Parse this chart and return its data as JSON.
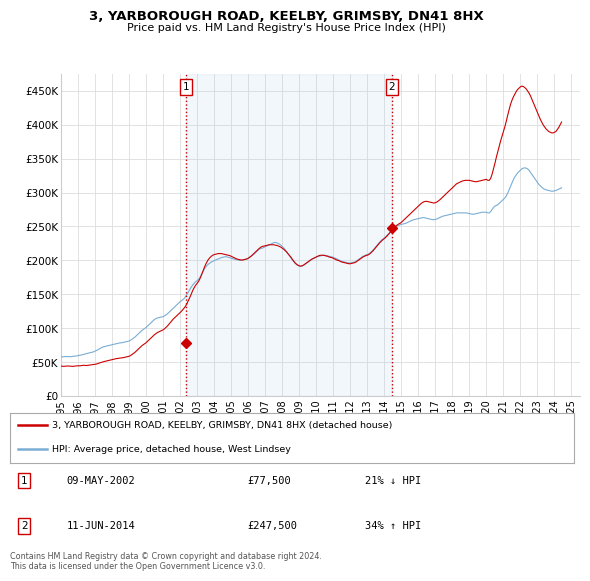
{
  "title": "3, YARBOROUGH ROAD, KEELBY, GRIMSBY, DN41 8HX",
  "subtitle": "Price paid vs. HM Land Registry's House Price Index (HPI)",
  "ylabel_ticks": [
    "£0",
    "£50K",
    "£100K",
    "£150K",
    "£200K",
    "£250K",
    "£300K",
    "£350K",
    "£400K",
    "£450K"
  ],
  "ytick_values": [
    0,
    50000,
    100000,
    150000,
    200000,
    250000,
    300000,
    350000,
    400000,
    450000
  ],
  "ylim": [
    0,
    475000
  ],
  "xlim_start": 1995.0,
  "xlim_end": 2025.5,
  "purchase1": {
    "date_num": 2002.36,
    "price": 77500,
    "label": "1",
    "text": "09-MAY-2002",
    "price_str": "£77,500",
    "pct": "21% ↓ HPI"
  },
  "purchase2": {
    "date_num": 2014.44,
    "price": 247500,
    "label": "2",
    "text": "11-JUN-2014",
    "price_str": "£247,500",
    "pct": "34% ↑ HPI"
  },
  "legend_line1": "3, YARBOROUGH ROAD, KEELBY, GRIMSBY, DN41 8HX (detached house)",
  "legend_line2": "HPI: Average price, detached house, West Lindsey",
  "footer": "Contains HM Land Registry data © Crown copyright and database right 2024.\nThis data is licensed under the Open Government Licence v3.0.",
  "line_color_red": "#cc0000",
  "line_color_blue": "#7aadd4",
  "fill_color": "#ddeeff",
  "vline_color": "#cc0000",
  "box_color": "#cc0000",
  "background_color": "#ffffff",
  "grid_color": "#dddddd",
  "hpi_monthly": {
    "years": [
      1995.0,
      1995.083,
      1995.167,
      1995.25,
      1995.333,
      1995.417,
      1995.5,
      1995.583,
      1995.667,
      1995.75,
      1995.833,
      1995.917,
      1996.0,
      1996.083,
      1996.167,
      1996.25,
      1996.333,
      1996.417,
      1996.5,
      1996.583,
      1996.667,
      1996.75,
      1996.833,
      1996.917,
      1997.0,
      1997.083,
      1997.167,
      1997.25,
      1997.333,
      1997.417,
      1997.5,
      1997.583,
      1997.667,
      1997.75,
      1997.833,
      1997.917,
      1998.0,
      1998.083,
      1998.167,
      1998.25,
      1998.333,
      1998.417,
      1998.5,
      1998.583,
      1998.667,
      1998.75,
      1998.833,
      1998.917,
      1999.0,
      1999.083,
      1999.167,
      1999.25,
      1999.333,
      1999.417,
      1999.5,
      1999.583,
      1999.667,
      1999.75,
      1999.833,
      1999.917,
      2000.0,
      2000.083,
      2000.167,
      2000.25,
      2000.333,
      2000.417,
      2000.5,
      2000.583,
      2000.667,
      2000.75,
      2000.833,
      2000.917,
      2001.0,
      2001.083,
      2001.167,
      2001.25,
      2001.333,
      2001.417,
      2001.5,
      2001.583,
      2001.667,
      2001.75,
      2001.833,
      2001.917,
      2002.0,
      2002.083,
      2002.167,
      2002.25,
      2002.333,
      2002.417,
      2002.5,
      2002.583,
      2002.667,
      2002.75,
      2002.833,
      2002.917,
      2003.0,
      2003.083,
      2003.167,
      2003.25,
      2003.333,
      2003.417,
      2003.5,
      2003.583,
      2003.667,
      2003.75,
      2003.833,
      2003.917,
      2004.0,
      2004.083,
      2004.167,
      2004.25,
      2004.333,
      2004.417,
      2004.5,
      2004.583,
      2004.667,
      2004.75,
      2004.833,
      2004.917,
      2005.0,
      2005.083,
      2005.167,
      2005.25,
      2005.333,
      2005.417,
      2005.5,
      2005.583,
      2005.667,
      2005.75,
      2005.833,
      2005.917,
      2006.0,
      2006.083,
      2006.167,
      2006.25,
      2006.333,
      2006.417,
      2006.5,
      2006.583,
      2006.667,
      2006.75,
      2006.833,
      2006.917,
      2007.0,
      2007.083,
      2007.167,
      2007.25,
      2007.333,
      2007.417,
      2007.5,
      2007.583,
      2007.667,
      2007.75,
      2007.833,
      2007.917,
      2008.0,
      2008.083,
      2008.167,
      2008.25,
      2008.333,
      2008.417,
      2008.5,
      2008.583,
      2008.667,
      2008.75,
      2008.833,
      2008.917,
      2009.0,
      2009.083,
      2009.167,
      2009.25,
      2009.333,
      2009.417,
      2009.5,
      2009.583,
      2009.667,
      2009.75,
      2009.833,
      2009.917,
      2010.0,
      2010.083,
      2010.167,
      2010.25,
      2010.333,
      2010.417,
      2010.5,
      2010.583,
      2010.667,
      2010.75,
      2010.833,
      2010.917,
      2011.0,
      2011.083,
      2011.167,
      2011.25,
      2011.333,
      2011.417,
      2011.5,
      2011.583,
      2011.667,
      2011.75,
      2011.833,
      2011.917,
      2012.0,
      2012.083,
      2012.167,
      2012.25,
      2012.333,
      2012.417,
      2012.5,
      2012.583,
      2012.667,
      2012.75,
      2012.833,
      2012.917,
      2013.0,
      2013.083,
      2013.167,
      2013.25,
      2013.333,
      2013.417,
      2013.5,
      2013.583,
      2013.667,
      2013.75,
      2013.833,
      2013.917,
      2014.0,
      2014.083,
      2014.167,
      2014.25,
      2014.333,
      2014.417,
      2014.5,
      2014.583,
      2014.667,
      2014.75,
      2014.833,
      2014.917,
      2015.0,
      2015.083,
      2015.167,
      2015.25,
      2015.333,
      2015.417,
      2015.5,
      2015.583,
      2015.667,
      2015.75,
      2015.833,
      2015.917,
      2016.0,
      2016.083,
      2016.167,
      2016.25,
      2016.333,
      2016.417,
      2016.5,
      2016.583,
      2016.667,
      2016.75,
      2016.833,
      2016.917,
      2017.0,
      2017.083,
      2017.167,
      2017.25,
      2017.333,
      2017.417,
      2017.5,
      2017.583,
      2017.667,
      2017.75,
      2017.833,
      2017.917,
      2018.0,
      2018.083,
      2018.167,
      2018.25,
      2018.333,
      2018.417,
      2018.5,
      2018.583,
      2018.667,
      2018.75,
      2018.833,
      2018.917,
      2019.0,
      2019.083,
      2019.167,
      2019.25,
      2019.333,
      2019.417,
      2019.5,
      2019.583,
      2019.667,
      2019.75,
      2019.833,
      2019.917,
      2020.0,
      2020.083,
      2020.167,
      2020.25,
      2020.333,
      2020.417,
      2020.5,
      2020.583,
      2020.667,
      2020.75,
      2020.833,
      2020.917,
      2021.0,
      2021.083,
      2021.167,
      2021.25,
      2021.333,
      2021.417,
      2021.5,
      2021.583,
      2021.667,
      2021.75,
      2021.833,
      2021.917,
      2022.0,
      2022.083,
      2022.167,
      2022.25,
      2022.333,
      2022.417,
      2022.5,
      2022.583,
      2022.667,
      2022.75,
      2022.833,
      2022.917,
      2023.0,
      2023.083,
      2023.167,
      2023.25,
      2023.333,
      2023.417,
      2023.5,
      2023.583,
      2023.667,
      2023.75,
      2023.833,
      2023.917,
      2024.0,
      2024.083,
      2024.167,
      2024.25,
      2024.333,
      2024.417
    ],
    "hpi_values": [
      58000,
      57500,
      57800,
      58200,
      57900,
      58100,
      57700,
      58000,
      58300,
      58500,
      58800,
      59000,
      59500,
      59800,
      60200,
      60800,
      61200,
      61700,
      62500,
      63000,
      63500,
      64000,
      64500,
      65000,
      66000,
      67000,
      68000,
      69500,
      70500,
      71500,
      72500,
      73000,
      73500,
      74000,
      74500,
      75000,
      75500,
      76000,
      76500,
      77000,
      77500,
      78000,
      78200,
      78500,
      79000,
      79500,
      80000,
      80500,
      81000,
      82000,
      83500,
      85000,
      86500,
      88500,
      90500,
      92500,
      94500,
      96500,
      98000,
      99500,
      101000,
      103000,
      105000,
      107000,
      109000,
      111000,
      113000,
      114000,
      115000,
      115500,
      116000,
      116500,
      117000,
      118000,
      119500,
      121000,
      123000,
      125000,
      127000,
      129000,
      131000,
      133000,
      135000,
      137000,
      139000,
      140500,
      142000,
      144000,
      147000,
      150500,
      154000,
      157500,
      161000,
      164000,
      166500,
      168500,
      170000,
      172000,
      175000,
      179000,
      183000,
      187000,
      190000,
      192500,
      194500,
      196000,
      197500,
      198500,
      199500,
      200500,
      201500,
      202000,
      203000,
      204000,
      204500,
      205000,
      205500,
      205000,
      204500,
      204000,
      203000,
      202500,
      202000,
      201500,
      201000,
      200500,
      200000,
      200000,
      200500,
      201000,
      201500,
      202000,
      203000,
      204500,
      206000,
      207500,
      209000,
      211000,
      213000,
      215000,
      216500,
      217500,
      218000,
      219000,
      220000,
      221000,
      222000,
      223000,
      224000,
      225000,
      226000,
      226500,
      226000,
      225000,
      224000,
      222500,
      220500,
      218500,
      216000,
      213000,
      210000,
      207000,
      204000,
      201000,
      198500,
      196000,
      194000,
      192500,
      191500,
      191000,
      191500,
      192500,
      194000,
      195500,
      197000,
      198500,
      200000,
      201500,
      202500,
      203500,
      204500,
      205500,
      206000,
      206500,
      207000,
      207500,
      207500,
      207000,
      206500,
      206000,
      205500,
      205000,
      204500,
      203500,
      202500,
      201500,
      200500,
      199500,
      198500,
      198000,
      197500,
      197000,
      196500,
      196000,
      196000,
      196500,
      197000,
      197500,
      198500,
      200000,
      201500,
      203000,
      204500,
      206000,
      207000,
      208000,
      208500,
      209500,
      211000,
      213000,
      215000,
      217500,
      220000,
      222500,
      225000,
      227500,
      229500,
      231500,
      233000,
      235000,
      237000,
      239000,
      241000,
      243000,
      245000,
      247500,
      249000,
      250500,
      251500,
      252500,
      253000,
      253500,
      254000,
      254500,
      255500,
      256500,
      257500,
      258500,
      259500,
      260000,
      260500,
      261000,
      261500,
      262000,
      262500,
      263000,
      263000,
      262500,
      262000,
      261500,
      261000,
      260500,
      260000,
      260000,
      260500,
      261000,
      262000,
      263000,
      264000,
      265000,
      265500,
      266000,
      266500,
      267000,
      267500,
      268000,
      268500,
      269000,
      269500,
      270000,
      270000,
      270000,
      270000,
      270000,
      270000,
      270000,
      270000,
      269500,
      269000,
      268500,
      268000,
      268000,
      268500,
      269000,
      269500,
      270000,
      270500,
      271000,
      271000,
      271000,
      271000,
      270000,
      270000,
      272000,
      275000,
      278000,
      280000,
      281000,
      282000,
      284000,
      286000,
      288000,
      290000,
      292000,
      295000,
      299000,
      304000,
      309000,
      314000,
      319000,
      323000,
      326000,
      329000,
      331000,
      333000,
      335000,
      336000,
      336500,
      336000,
      335000,
      333000,
      330000,
      327000,
      324000,
      321000,
      318000,
      315000,
      312000,
      310000,
      308000,
      306000,
      305000,
      304000,
      303500,
      303000,
      302500,
      302000,
      302000,
      302500,
      303000,
      304000,
      305000,
      306000,
      307000
    ],
    "price_values": [
      44000,
      43800,
      43600,
      43800,
      44000,
      44200,
      44000,
      43800,
      43600,
      43800,
      44000,
      44200,
      44500,
      44300,
      44600,
      44900,
      45200,
      45000,
      44800,
      45100,
      45400,
      45700,
      46000,
      46300,
      46500,
      47000,
      47800,
      48500,
      49200,
      50000,
      50500,
      51000,
      51500,
      52000,
      52500,
      53000,
      53500,
      54000,
      54500,
      55000,
      55300,
      55600,
      55900,
      56200,
      56500,
      57000,
      57500,
      58000,
      58500,
      59500,
      61000,
      62500,
      64000,
      66000,
      68000,
      70000,
      72000,
      74000,
      75500,
      77000,
      78500,
      80500,
      82500,
      84500,
      86500,
      88500,
      90500,
      92000,
      93500,
      94500,
      95500,
      96500,
      97500,
      99000,
      101000,
      103000,
      105500,
      108000,
      110500,
      113000,
      115000,
      117000,
      119000,
      121000,
      123000,
      125000,
      127500,
      130000,
      133000,
      137000,
      141500,
      146000,
      151000,
      156000,
      160000,
      163500,
      166000,
      169000,
      173000,
      178000,
      183500,
      189000,
      194000,
      198000,
      201500,
      204000,
      206000,
      207500,
      208500,
      209000,
      209500,
      210000,
      210000,
      210000,
      209500,
      209000,
      208500,
      208000,
      207500,
      207000,
      206000,
      205000,
      204000,
      203000,
      202000,
      201500,
      201000,
      200500,
      200500,
      201000,
      201500,
      202000,
      203000,
      204500,
      206000,
      208000,
      210000,
      212000,
      214000,
      216000,
      218000,
      219500,
      220500,
      221000,
      221500,
      222000,
      222500,
      223000,
      223000,
      223000,
      223000,
      222500,
      222000,
      221500,
      220500,
      219500,
      218000,
      216500,
      214500,
      212500,
      210000,
      207500,
      205000,
      202000,
      199000,
      196500,
      194500,
      193000,
      192000,
      191500,
      192000,
      193000,
      194500,
      196000,
      197500,
      199000,
      200500,
      202000,
      203000,
      204000,
      205000,
      206000,
      207000,
      207500,
      207500,
      207500,
      207000,
      206500,
      206000,
      205000,
      204500,
      204000,
      203000,
      202000,
      201000,
      200000,
      199500,
      198500,
      197500,
      197000,
      196500,
      196000,
      195500,
      195000,
      195000,
      195500,
      196000,
      196500,
      197500,
      199000,
      200500,
      202000,
      203500,
      205000,
      206000,
      207000,
      207500,
      208500,
      210000,
      212000,
      214000,
      216500,
      219000,
      221500,
      224000,
      226500,
      228500,
      230500,
      232000,
      234000,
      236000,
      238500,
      241000,
      243500,
      246000,
      248000,
      250500,
      252000,
      253500,
      254500,
      256000,
      258000,
      260000,
      262000,
      264000,
      266000,
      268000,
      270000,
      272000,
      274000,
      276000,
      278000,
      280000,
      282000,
      284000,
      285500,
      286500,
      287000,
      287000,
      286500,
      286000,
      285500,
      285000,
      284500,
      285000,
      286000,
      287500,
      289000,
      291000,
      293000,
      295000,
      297000,
      299000,
      301000,
      303000,
      305000,
      307000,
      309000,
      311000,
      313000,
      314000,
      315000,
      316000,
      317000,
      317500,
      318000,
      318000,
      318000,
      318000,
      317500,
      317000,
      316500,
      316000,
      316000,
      316500,
      317000,
      317500,
      318000,
      318500,
      319000,
      319500,
      318000,
      318000,
      321000,
      327000,
      335000,
      343000,
      352000,
      360000,
      368000,
      376000,
      383000,
      390000,
      397000,
      405000,
      414000,
      422000,
      430000,
      436000,
      441000,
      445000,
      449000,
      452000,
      454000,
      456000,
      457000,
      456500,
      455000,
      453000,
      450000,
      447000,
      443000,
      438000,
      433000,
      428000,
      423000,
      418000,
      413000,
      408000,
      404000,
      400000,
      397000,
      394000,
      392000,
      390000,
      389000,
      388000,
      388000,
      389000,
      390000,
      393000,
      396000,
      400000,
      404000
    ]
  },
  "xtick_years": [
    1995,
    1996,
    1997,
    1998,
    1999,
    2000,
    2001,
    2002,
    2003,
    2004,
    2005,
    2006,
    2007,
    2008,
    2009,
    2010,
    2011,
    2012,
    2013,
    2014,
    2015,
    2016,
    2017,
    2018,
    2019,
    2020,
    2021,
    2022,
    2023,
    2024,
    2025
  ]
}
